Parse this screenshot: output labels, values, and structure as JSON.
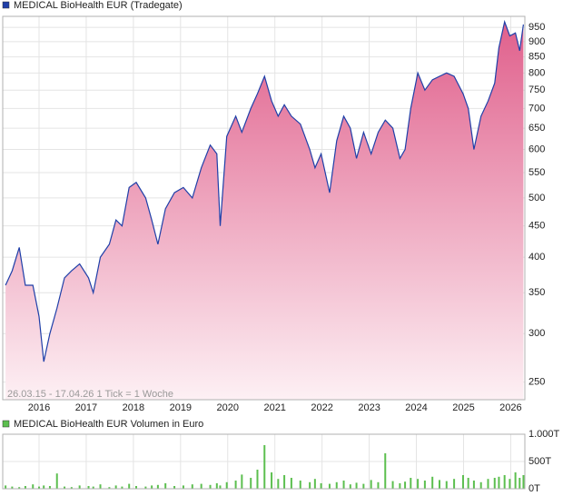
{
  "chart_data": [
    {
      "type": "area",
      "title": "MEDICAL BioHealth EUR (Tradegate)",
      "annotation": "26.03.15 - 17.04.26   1 Tick = 1 Woche",
      "color": "#1f3fa8",
      "fill_top": "#e0608c",
      "fill_bottom": "#fdf0f4",
      "log_scale": true,
      "grid": true,
      "xlim": [
        2015.23,
        2026.3
      ],
      "xticks": [
        2016,
        2017,
        2018,
        2019,
        2020,
        2021,
        2022,
        2023,
        2024,
        2025,
        2026
      ],
      "ylim": [
        234,
        990
      ],
      "yticks": [
        250,
        300,
        350,
        400,
        450,
        500,
        550,
        600,
        650,
        700,
        750,
        800,
        850,
        900,
        950
      ],
      "x": [
        2015.29,
        2015.43,
        2015.58,
        2015.71,
        2015.87,
        2016.0,
        2016.1,
        2016.23,
        2016.38,
        2016.54,
        2016.69,
        2016.86,
        2017.05,
        2017.15,
        2017.3,
        2017.49,
        2017.63,
        2017.76,
        2017.91,
        2018.06,
        2018.26,
        2018.39,
        2018.52,
        2018.68,
        2018.87,
        2019.06,
        2019.25,
        2019.44,
        2019.63,
        2019.77,
        2019.84,
        2019.98,
        2020.17,
        2020.3,
        2020.49,
        2020.63,
        2020.78,
        2020.93,
        2021.07,
        2021.2,
        2021.35,
        2021.54,
        2021.74,
        2021.85,
        2021.98,
        2022.16,
        2022.31,
        2022.46,
        2022.6,
        2022.73,
        2022.88,
        2023.04,
        2023.19,
        2023.34,
        2023.5,
        2023.65,
        2023.76,
        2023.88,
        2024.03,
        2024.18,
        2024.34,
        2024.49,
        2024.64,
        2024.8,
        2024.99,
        2025.1,
        2025.22,
        2025.37,
        2025.52,
        2025.66,
        2025.75,
        2025.87,
        2025.98,
        2026.1,
        2026.19,
        2026.27
      ],
      "values": [
        360,
        380,
        415,
        360,
        360,
        320,
        270,
        300,
        330,
        370,
        380,
        390,
        370,
        350,
        400,
        420,
        460,
        450,
        520,
        530,
        500,
        460,
        420,
        480,
        510,
        520,
        500,
        560,
        610,
        590,
        450,
        630,
        680,
        640,
        700,
        740,
        790,
        720,
        680,
        710,
        680,
        660,
        600,
        560,
        590,
        510,
        620,
        680,
        650,
        580,
        640,
        590,
        640,
        670,
        650,
        580,
        600,
        700,
        800,
        750,
        780,
        790,
        800,
        790,
        740,
        700,
        600,
        680,
        720,
        770,
        880,
        970,
        920,
        930,
        870,
        960
      ]
    },
    {
      "type": "bar",
      "title": "MEDICAL BioHealth EUR Volumen in Euro",
      "color": "#5cbf4f",
      "grid": true,
      "xlim": [
        2015.23,
        2026.3
      ],
      "xticks": [
        2016,
        2017,
        2018,
        2019,
        2020,
        2021,
        2022,
        2023,
        2024,
        2025,
        2026
      ],
      "ylim": [
        0,
        1000
      ],
      "yticks": [
        {
          "value": 0,
          "label": "0T"
        },
        {
          "value": 500,
          "label": "500T"
        },
        {
          "value": 1000,
          "label": "1.000T"
        }
      ],
      "x": [
        2015.29,
        2015.43,
        2015.58,
        2015.71,
        2015.87,
        2016.0,
        2016.1,
        2016.23,
        2016.38,
        2016.54,
        2016.69,
        2016.86,
        2017.05,
        2017.15,
        2017.3,
        2017.49,
        2017.63,
        2017.76,
        2017.91,
        2018.06,
        2018.26,
        2018.39,
        2018.52,
        2018.68,
        2018.87,
        2019.06,
        2019.25,
        2019.44,
        2019.63,
        2019.77,
        2019.84,
        2019.98,
        2020.17,
        2020.3,
        2020.49,
        2020.63,
        2020.78,
        2020.93,
        2021.07,
        2021.2,
        2021.35,
        2021.54,
        2021.74,
        2021.85,
        2021.98,
        2022.16,
        2022.31,
        2022.46,
        2022.6,
        2022.73,
        2022.88,
        2023.04,
        2023.19,
        2023.34,
        2023.5,
        2023.65,
        2023.76,
        2023.88,
        2024.03,
        2024.18,
        2024.34,
        2024.49,
        2024.64,
        2024.8,
        2024.99,
        2025.1,
        2025.22,
        2025.37,
        2025.52,
        2025.66,
        2025.75,
        2025.87,
        2025.98,
        2026.1,
        2026.19,
        2026.27
      ],
      "values": [
        60,
        40,
        30,
        50,
        80,
        40,
        60,
        50,
        280,
        40,
        30,
        60,
        50,
        40,
        80,
        30,
        60,
        40,
        90,
        50,
        40,
        60,
        70,
        100,
        50,
        60,
        80,
        90,
        70,
        100,
        60,
        120,
        150,
        260,
        200,
        350,
        800,
        300,
        180,
        250,
        200,
        150,
        120,
        180,
        100,
        90,
        120,
        150,
        80,
        110,
        90,
        160,
        120,
        650,
        140,
        100,
        130,
        200,
        180,
        150,
        220,
        160,
        140,
        180,
        250,
        200,
        150,
        120,
        180,
        200,
        220,
        250,
        180,
        300,
        200,
        250
      ]
    }
  ]
}
